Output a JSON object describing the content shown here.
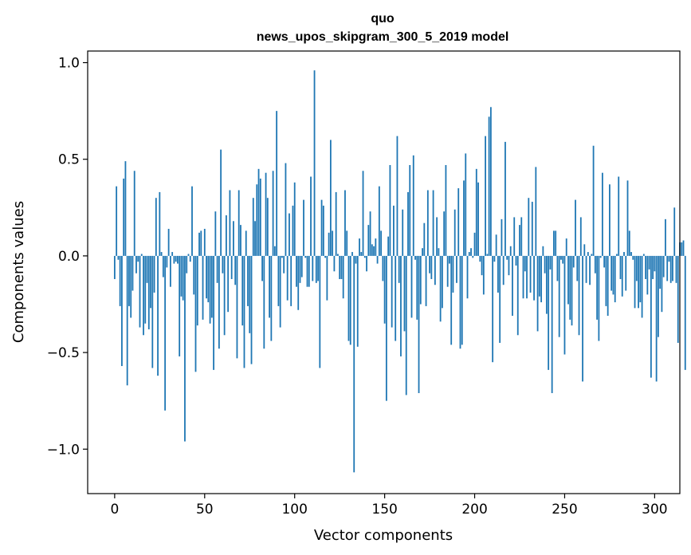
{
  "chart_data": {
    "type": "bar",
    "title": "quo",
    "subtitle": "news_upos_skipgram_300_5_2019 model",
    "xlabel": "Vector components",
    "ylabel": "Components values",
    "xlim": [
      -15,
      314
    ],
    "ylim": [
      -1.23,
      1.06
    ],
    "xticks": [
      0,
      50,
      100,
      150,
      200,
      250,
      300
    ],
    "xtick_labels": [
      "0",
      "50",
      "100",
      "150",
      "200",
      "250",
      "300"
    ],
    "yticks": [
      -1.0,
      -0.5,
      0.0,
      0.5,
      1.0
    ],
    "ytick_labels": [
      "−1.0",
      "−0.5",
      "0.0",
      "0.5",
      "1.0"
    ],
    "grid": false,
    "series": [
      {
        "name": "components",
        "color": "#1f77b4",
        "x_start": 0,
        "values": [
          -0.12,
          0.36,
          -0.02,
          -0.26,
          -0.57,
          0.4,
          0.49,
          -0.67,
          -0.26,
          -0.32,
          -0.18,
          0.44,
          -0.09,
          -0.03,
          -0.37,
          0.01,
          -0.41,
          -0.35,
          -0.14,
          -0.38,
          -0.27,
          -0.58,
          -0.19,
          0.3,
          -0.62,
          0.33,
          0.02,
          -0.11,
          -0.8,
          -0.06,
          0.14,
          -0.16,
          0.02,
          -0.04,
          -0.03,
          -0.04,
          -0.52,
          -0.21,
          -0.23,
          -0.96,
          -0.09,
          0.01,
          -0.03,
          0.36,
          -0.2,
          -0.6,
          -0.36,
          0.12,
          0.13,
          -0.33,
          0.14,
          -0.22,
          -0.24,
          -0.35,
          -0.32,
          -0.59,
          0.23,
          -0.14,
          -0.48,
          0.55,
          -0.09,
          -0.41,
          0.21,
          -0.29,
          0.34,
          -0.12,
          0.18,
          -0.15,
          -0.53,
          0.34,
          0.16,
          -0.36,
          -0.58,
          0.13,
          -0.26,
          -0.4,
          -0.56,
          0.3,
          0.18,
          0.37,
          0.45,
          0.4,
          -0.13,
          -0.48,
          0.43,
          0.3,
          -0.32,
          -0.44,
          0.44,
          0.05,
          0.75,
          -0.26,
          -0.37,
          -0.01,
          -0.09,
          0.48,
          -0.23,
          0.22,
          -0.26,
          0.26,
          0.38,
          -0.16,
          -0.28,
          -0.14,
          -0.11,
          0.29,
          -0.01,
          -0.16,
          -0.16,
          0.41,
          -0.13,
          0.96,
          -0.14,
          -0.13,
          -0.58,
          0.29,
          0.26,
          -0.01,
          -0.23,
          0.12,
          0.6,
          0.13,
          -0.08,
          0.33,
          0.01,
          -0.12,
          -0.12,
          -0.22,
          0.34,
          0.13,
          -0.44,
          -0.46,
          0.02,
          -1.12,
          -0.04,
          -0.47,
          0.09,
          0.02,
          0.44,
          -0.01,
          -0.08,
          0.16,
          0.23,
          0.06,
          0.05,
          0.09,
          -0.04,
          0.36,
          0.13,
          -0.13,
          -0.35,
          -0.75,
          0.1,
          0.47,
          -0.37,
          0.26,
          -0.44,
          0.62,
          -0.14,
          -0.52,
          0.24,
          -0.39,
          -0.72,
          0.33,
          0.47,
          -0.32,
          0.52,
          -0.02,
          -0.33,
          -0.71,
          -0.25,
          0.04,
          0.17,
          -0.26,
          0.34,
          -0.09,
          -0.12,
          0.34,
          -0.15,
          0.2,
          0.04,
          -0.34,
          -0.27,
          0.23,
          0.47,
          -0.16,
          -0.04,
          -0.46,
          -0.19,
          0.24,
          -0.14,
          0.35,
          -0.48,
          -0.46,
          0.39,
          0.53,
          -0.22,
          0.02,
          0.04,
          -0.01,
          0.12,
          0.45,
          0.38,
          -0.03,
          -0.1,
          -0.2,
          0.62,
          0.01,
          0.72,
          0.77,
          -0.55,
          -0.03,
          0.11,
          -0.19,
          -0.45,
          0.19,
          -0.15,
          0.59,
          -0.02,
          -0.1,
          0.05,
          -0.31,
          0.2,
          -0.05,
          -0.41,
          0.16,
          0.2,
          -0.22,
          -0.08,
          -0.22,
          0.3,
          -0.19,
          0.28,
          -0.23,
          0.46,
          -0.39,
          -0.21,
          -0.24,
          0.05,
          -0.09,
          -0.3,
          -0.59,
          -0.07,
          -0.71,
          0.13,
          0.13,
          -0.13,
          -0.42,
          -0.02,
          -0.04,
          -0.51,
          0.09,
          -0.25,
          -0.33,
          -0.36,
          -0.06,
          0.29,
          -0.13,
          -0.41,
          0.2,
          -0.65,
          0.06,
          -0.14,
          0.02,
          -0.15,
          0.01,
          0.57,
          -0.09,
          -0.33,
          -0.44,
          -0.01,
          0.43,
          -0.06,
          -0.26,
          -0.31,
          0.37,
          -0.18,
          -0.2,
          -0.24,
          0.01,
          0.41,
          -0.12,
          -0.21,
          0.02,
          -0.18,
          0.39,
          0.13,
          0.02,
          -0.02,
          -0.27,
          -0.13,
          -0.27,
          -0.24,
          -0.32,
          0.01,
          -0.12,
          -0.2,
          -0.07,
          -0.63,
          -0.12,
          -0.08,
          -0.65,
          -0.42,
          -0.17,
          -0.29,
          -0.11,
          0.19,
          -0.13,
          -0.03,
          -0.14,
          -0.13,
          0.25,
          -0.14,
          -0.45,
          0.07,
          0.07,
          0.08,
          -0.59
        ]
      }
    ]
  }
}
